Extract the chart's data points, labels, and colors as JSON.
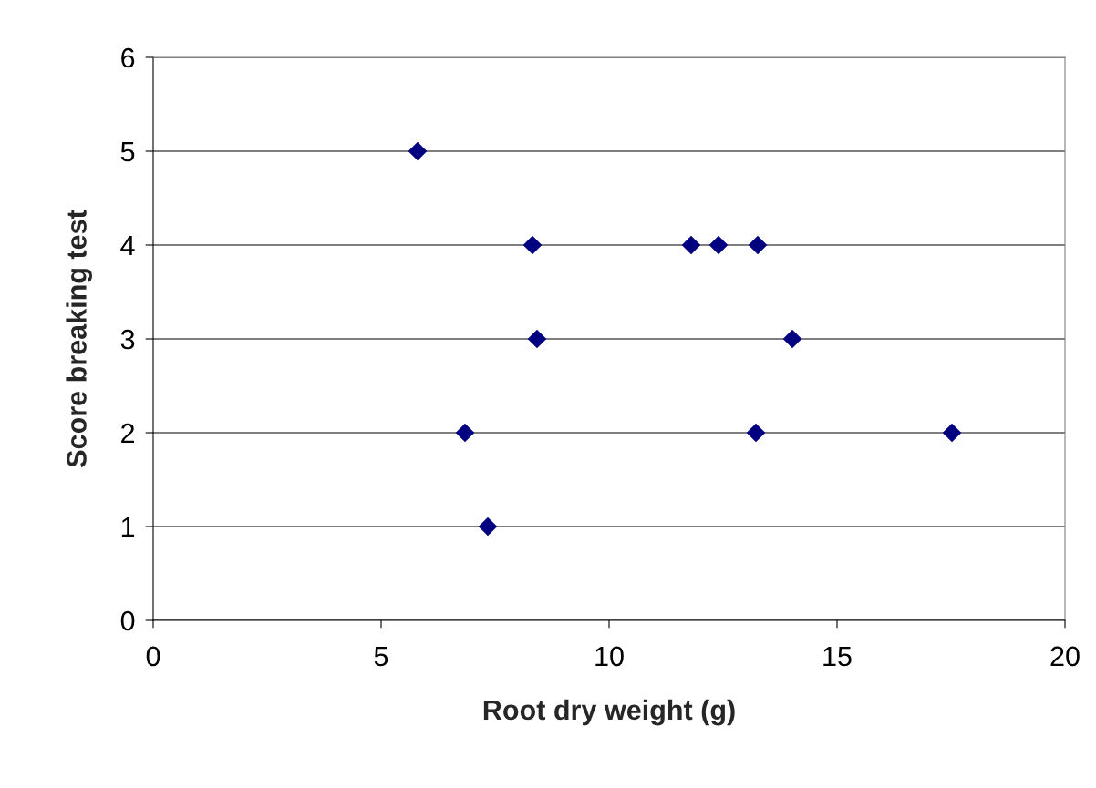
{
  "chart_data": {
    "type": "scatter",
    "xlabel": "Root dry weight (g)",
    "ylabel": "Score breaking test",
    "x": [
      5.8,
      8.32,
      11.8,
      12.4,
      13.26,
      8.42,
      14.02,
      6.84,
      13.22,
      17.52,
      7.34
    ],
    "values": [
      5,
      4,
      4,
      4,
      4,
      3,
      3,
      2,
      2,
      2,
      1
    ],
    "color": "#000080",
    "marker": "diamond",
    "xlim": [
      0,
      20
    ],
    "xticks": [
      0,
      5,
      10,
      15,
      20
    ],
    "ylim": [
      0,
      6
    ],
    "yticks": [
      0,
      1,
      2,
      3,
      4,
      5,
      6
    ],
    "grid": "y",
    "legend": false
  }
}
